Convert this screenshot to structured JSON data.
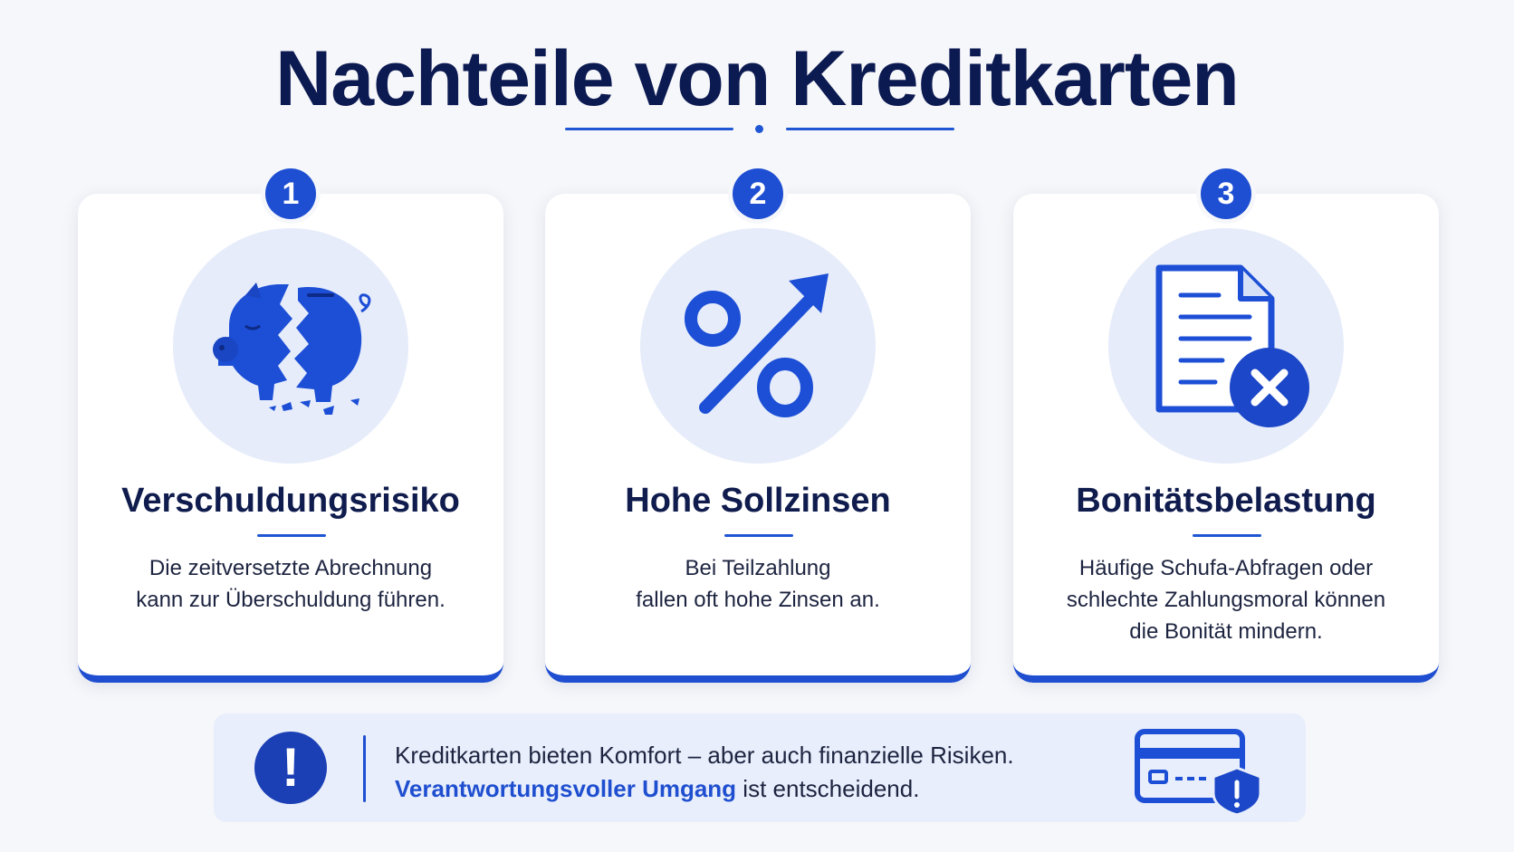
{
  "title": "Nachteile von Kreditkarten",
  "accent_color": "#1f4fd0",
  "dark_color": "#0c1a52",
  "cards": [
    {
      "number": "1",
      "icon": "broken-piggy-bank-icon",
      "title": "Verschuldungsrisiko",
      "desc_line1": "Die zeitversetzte Abrechnung",
      "desc_line2": "kann zur Überschuldung führen.",
      "desc_line3": ""
    },
    {
      "number": "2",
      "icon": "percent-arrow-up-icon",
      "title": "Hohe Sollzinsen",
      "desc_line1": "Bei Teilzahlung",
      "desc_line2": "fallen oft hohe Zinsen an.",
      "desc_line3": ""
    },
    {
      "number": "3",
      "icon": "document-rejected-icon",
      "title": "Bonitätsbelastung",
      "desc_line1": "Häufige Schufa-Abfragen oder",
      "desc_line2": "schlechte Zahlungsmoral können",
      "desc_line3": "die Bonität mindern."
    }
  ],
  "banner": {
    "icon": "exclamation-icon",
    "line1": "Kreditkarten bieten Komfort – aber auch finanzielle Risiken.",
    "highlight": "Verantwortungsvoller Umgang",
    "line2_rest": " ist entscheidend.",
    "right_icon": "credit-card-shield-icon"
  }
}
